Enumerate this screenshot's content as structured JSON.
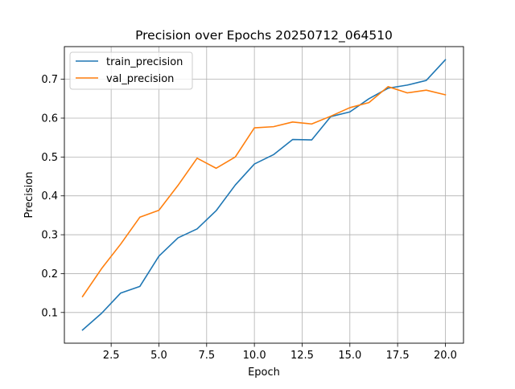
{
  "chart_data": {
    "type": "line",
    "title": "Precision over Epochs 20250712_064510",
    "xlabel": "Epoch",
    "ylabel": "Precision",
    "xlim": [
      0.05,
      20.95
    ],
    "ylim": [
      0.021,
      0.784
    ],
    "xticks": [
      2.5,
      5.0,
      7.5,
      10.0,
      12.5,
      15.0,
      17.5,
      20.0
    ],
    "xtick_labels": [
      "2.5",
      "5.0",
      "7.5",
      "10.0",
      "12.5",
      "15.0",
      "17.5",
      "20.0"
    ],
    "yticks": [
      0.1,
      0.2,
      0.3,
      0.4,
      0.5,
      0.6,
      0.7
    ],
    "ytick_labels": [
      "0.1",
      "0.2",
      "0.3",
      "0.4",
      "0.5",
      "0.6",
      "0.7"
    ],
    "grid": true,
    "legend_position": "top-left",
    "x": [
      1,
      2,
      3,
      4,
      5,
      6,
      7,
      8,
      9,
      10,
      11,
      12,
      13,
      14,
      15,
      16,
      17,
      18,
      19,
      20
    ],
    "series": [
      {
        "name": "train_precision",
        "color": "#1f77b4",
        "values": [
          0.055,
          0.098,
          0.15,
          0.167,
          0.245,
          0.292,
          0.315,
          0.362,
          0.428,
          0.482,
          0.506,
          0.545,
          0.544,
          0.604,
          0.616,
          0.65,
          0.677,
          0.685,
          0.697,
          0.75
        ]
      },
      {
        "name": "val_precision",
        "color": "#ff7f0e",
        "values": [
          0.141,
          0.213,
          0.276,
          0.345,
          0.363,
          0.427,
          0.497,
          0.471,
          0.5,
          0.575,
          0.578,
          0.59,
          0.585,
          0.605,
          0.627,
          0.64,
          0.681,
          0.665,
          0.672,
          0.66
        ]
      }
    ]
  }
}
